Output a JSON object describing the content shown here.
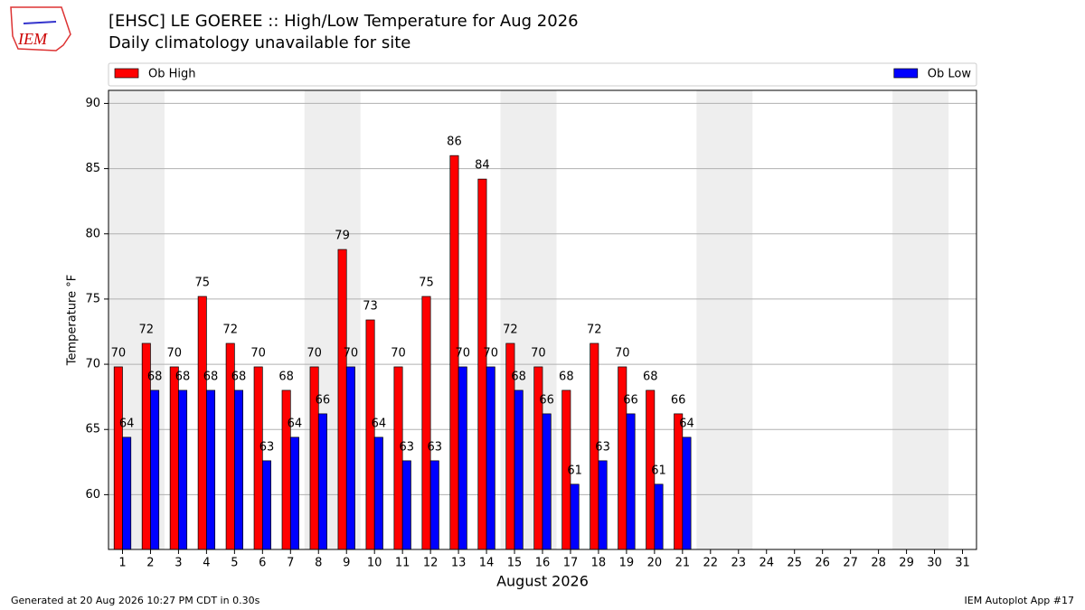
{
  "chart_data": {
    "type": "bar",
    "title": "[EHSC] LE GOEREE :: High/Low Temperature for Aug 2026",
    "subtitle": "Daily climatology unavailable for site",
    "logo_text": "IEM",
    "x_label": "August 2026",
    "y_label": "Temperature °F",
    "footer_left": "Generated at 20 Aug 2026 10:27 PM CDT in 0.30s",
    "footer_right": "IEM Autoplot App #17",
    "x": [
      1,
      2,
      3,
      4,
      5,
      6,
      7,
      8,
      9,
      10,
      11,
      12,
      13,
      14,
      15,
      16,
      17,
      18,
      19,
      20,
      21,
      22,
      23,
      24,
      25,
      26,
      27,
      28,
      29,
      30,
      31
    ],
    "xlim": [
      0.5,
      31.5
    ],
    "xticks": [
      1,
      2,
      3,
      4,
      5,
      6,
      7,
      8,
      9,
      10,
      11,
      12,
      13,
      14,
      15,
      16,
      17,
      18,
      19,
      20,
      21,
      22,
      23,
      24,
      25,
      26,
      27,
      28,
      29,
      30,
      31
    ],
    "ylim": [
      55.8,
      91
    ],
    "yticks": [
      60,
      65,
      70,
      75,
      80,
      85,
      90
    ],
    "grid": true,
    "shaded_spans": [
      [
        0.5,
        2.5
      ],
      [
        7.5,
        9.5
      ],
      [
        14.5,
        16.5
      ],
      [
        21.5,
        23.5
      ],
      [
        28.5,
        30.5
      ]
    ],
    "shade_color": "#eeeeee",
    "series": [
      {
        "name": "Ob High",
        "color": "#ff0000",
        "values": [
          69.8,
          71.6,
          69.8,
          75.2,
          71.6,
          69.8,
          68,
          69.8,
          78.8,
          73.4,
          69.8,
          75.2,
          86,
          84.2,
          71.6,
          69.8,
          68,
          71.6,
          69.8,
          68,
          66.2,
          null,
          null,
          null,
          null,
          null,
          null,
          null,
          null,
          null,
          null
        ],
        "value_labels": [
          "70",
          "72",
          "70",
          "75",
          "72",
          "70",
          "68",
          "70",
          "79",
          "73",
          "70",
          "75",
          "86",
          "84",
          "72",
          "70",
          "68",
          "72",
          "70",
          "68",
          "66",
          null,
          null,
          null,
          null,
          null,
          null,
          null,
          null,
          null,
          null
        ]
      },
      {
        "name": "Ob Low",
        "color": "#0000ff",
        "values": [
          64.4,
          68,
          68,
          68,
          68,
          62.6,
          64.4,
          66.2,
          69.8,
          64.4,
          62.6,
          62.6,
          69.8,
          69.8,
          68,
          66.2,
          60.8,
          62.6,
          66.2,
          60.8,
          64.4,
          null,
          null,
          null,
          null,
          null,
          null,
          null,
          null,
          null,
          null
        ],
        "value_labels": [
          "64",
          "68",
          "68",
          "68",
          "68",
          "63",
          "64",
          "66",
          "70",
          "64",
          "63",
          "63",
          "70",
          "70",
          "68",
          "66",
          "61",
          "63",
          "66",
          "61",
          "64",
          null,
          null,
          null,
          null,
          null,
          null,
          null,
          null,
          null,
          null
        ]
      }
    ]
  }
}
